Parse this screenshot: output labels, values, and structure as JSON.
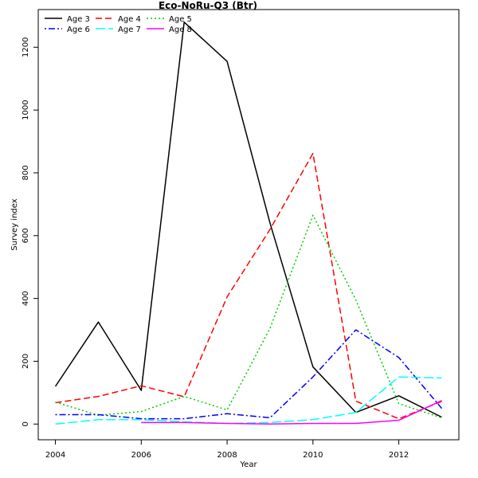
{
  "chart_data": {
    "type": "line",
    "title": "Eco-NoRu-Q3 (Btr)",
    "xlabel": "Year",
    "ylabel": "Survey index",
    "xlim": [
      2003.6,
      2013.4
    ],
    "ylim": [
      -50,
      1320
    ],
    "x_ticks": [
      2004,
      2006,
      2008,
      2010,
      2012
    ],
    "y_ticks": [
      0,
      200,
      400,
      600,
      800,
      1000,
      1200
    ],
    "legend_position": "top-left",
    "x": [
      2004,
      2005,
      2006,
      2007,
      2008,
      2009,
      2010,
      2011,
      2012,
      2013
    ],
    "series": [
      {
        "name": "Age 3",
        "color": "#000000",
        "dash": "solid",
        "values": [
          120,
          325,
          107,
          1280,
          1155,
          640,
          182,
          37,
          90,
          22
        ]
      },
      {
        "name": "Age 4",
        "color": "#ff0000",
        "dash": "dashed",
        "values": [
          68,
          88,
          122,
          87,
          405,
          620,
          862,
          73,
          17,
          72
        ]
      },
      {
        "name": "Age 5",
        "color": "#00cd00",
        "dash": "dotted",
        "values": [
          70,
          28,
          40,
          88,
          45,
          305,
          665,
          395,
          65,
          20
        ]
      },
      {
        "name": "Age 6",
        "color": "#0000ff",
        "dash": "dotdash",
        "values": [
          30,
          30,
          17,
          17,
          33,
          20,
          150,
          300,
          212,
          50
        ]
      },
      {
        "name": "Age 7",
        "color": "#00ffff",
        "dash": "longdash",
        "values": [
          0,
          14,
          14,
          7,
          2,
          5,
          14,
          37,
          150,
          147
        ]
      },
      {
        "name": "Age 8",
        "color": "#ff00ff",
        "dash": "solid",
        "values": [
          null,
          null,
          5,
          5,
          2,
          0,
          2,
          2,
          12,
          75
        ]
      }
    ]
  }
}
